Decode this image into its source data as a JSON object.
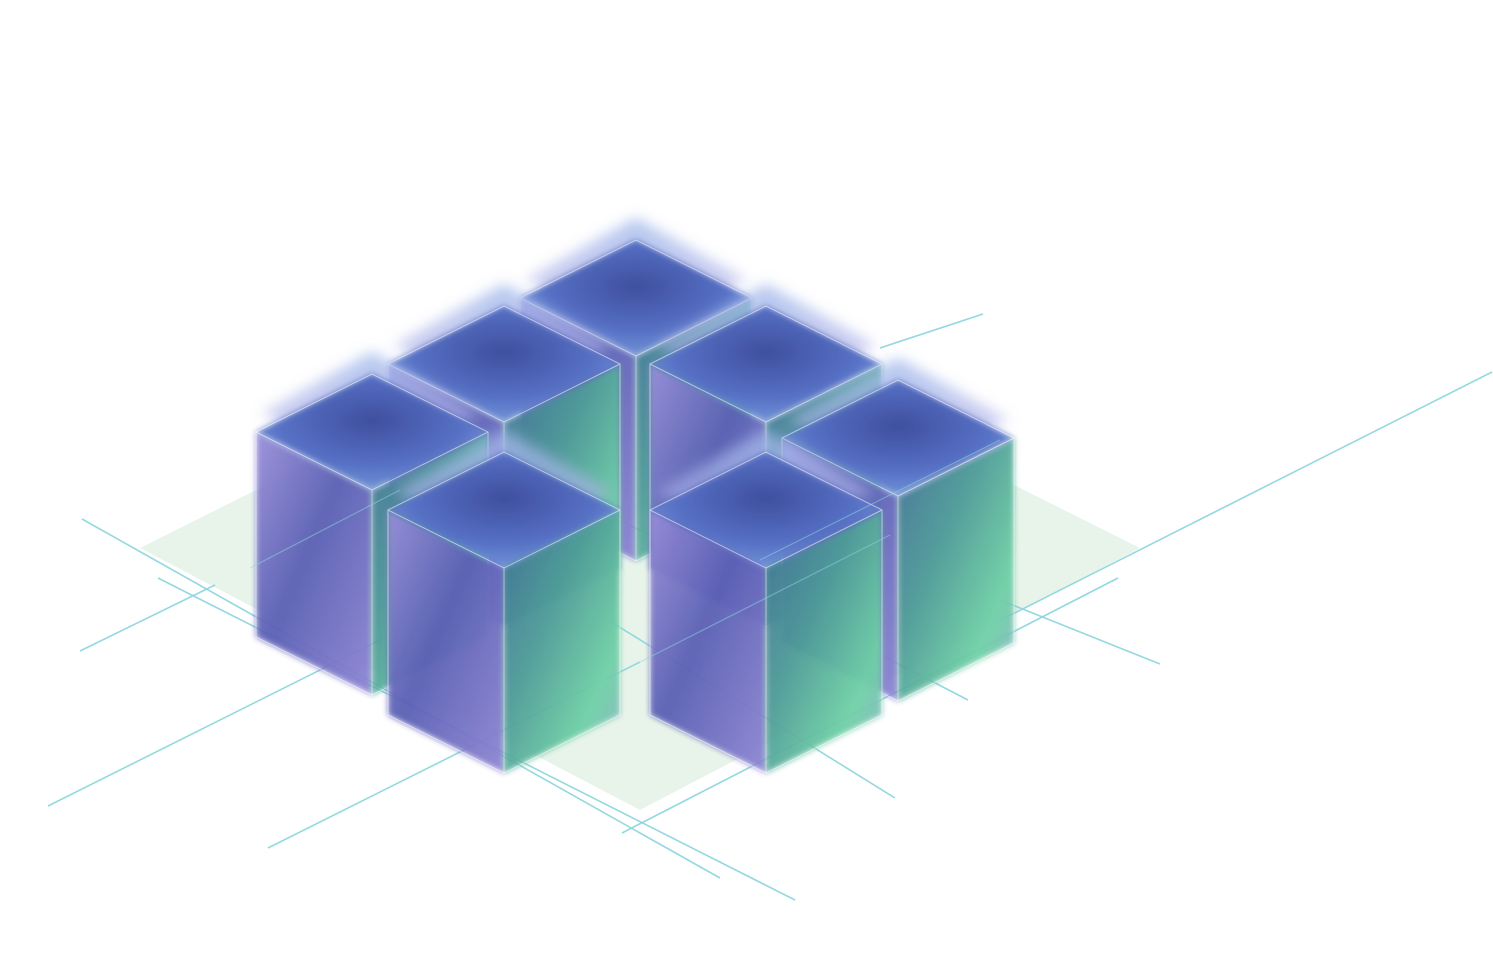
{
  "illustration": {
    "subject": "isometric-cube-cluster",
    "cube_count": 7,
    "colors": {
      "background": "#ffffff",
      "platform": "#e6f3e8",
      "guide_lines": "#8ed6df",
      "cube_top_light": "#6f95d8",
      "cube_top_dark": "#3f4f9e",
      "cube_left_violet": "#8a84d6",
      "cube_left_dark": "#4a4a9e",
      "cube_right_mint": "#6fd1a6",
      "cube_right_teal": "#3f8c8a",
      "edge_highlight": "#ffffff"
    }
  }
}
